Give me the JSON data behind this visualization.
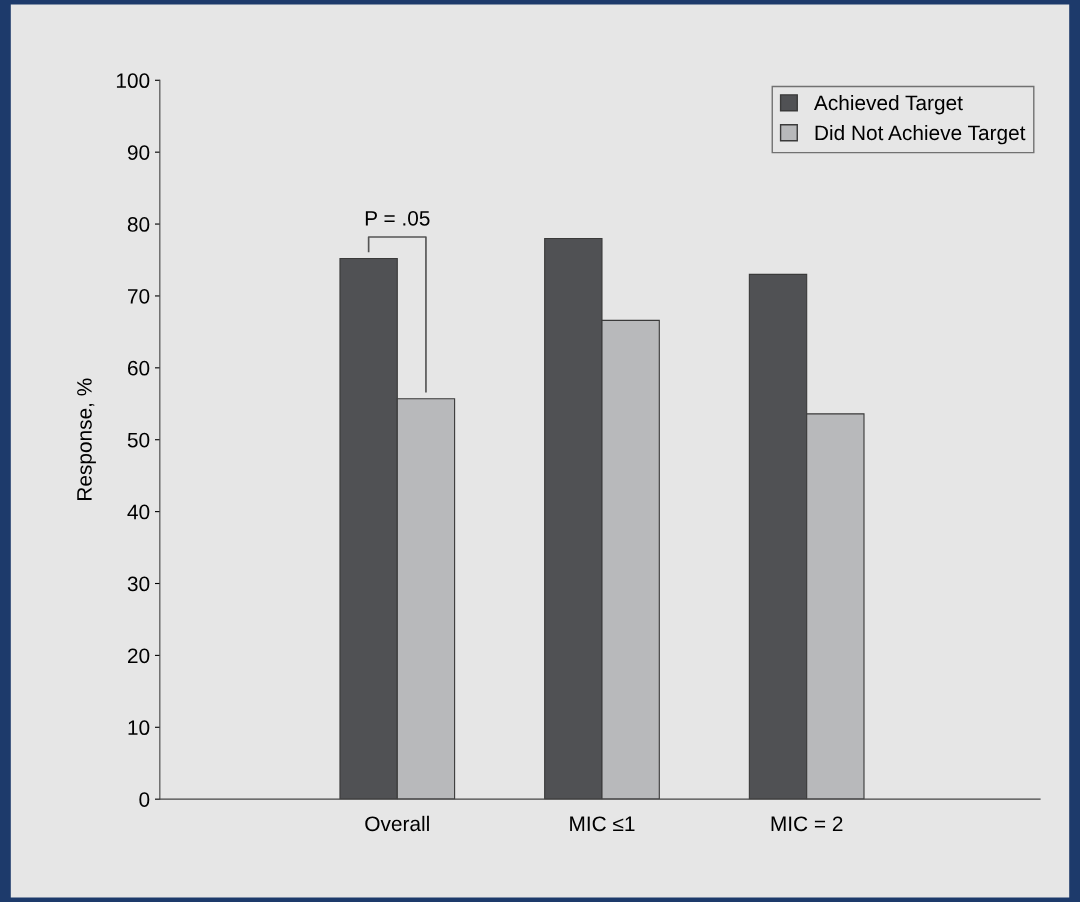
{
  "chart_data": {
    "type": "bar",
    "ylabel": "Response, %",
    "categories": [
      "Overall",
      "MIC ≤1",
      "MIC = 2"
    ],
    "series": [
      {
        "name": "Achieved Target",
        "color": "#505154",
        "values": [
          75.2,
          78,
          73
        ]
      },
      {
        "name": "Did Not Achieve Target",
        "color": "#b8b9bb",
        "values": [
          55.7,
          66.6,
          53.6
        ]
      }
    ],
    "ylim": [
      0,
      100
    ],
    "yticks": [
      0,
      10,
      20,
      30,
      40,
      50,
      60,
      70,
      80,
      90,
      100
    ],
    "grid": false,
    "legend": "top right",
    "annotations": [
      "P = .05"
    ]
  }
}
